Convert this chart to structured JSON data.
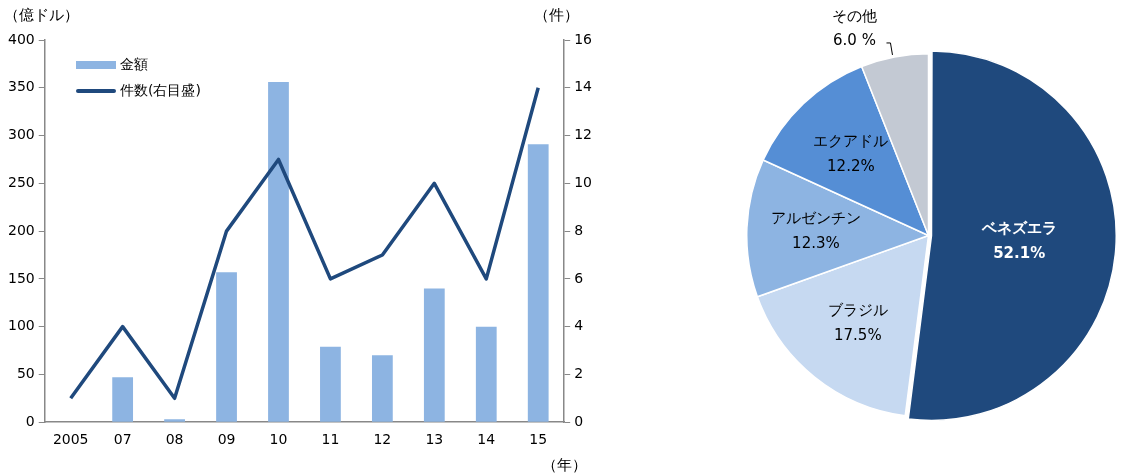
{
  "chart_data": [
    {
      "type": "bar",
      "ylabel": "（億ドル）",
      "y2label": "（件）",
      "xlabel": "（年）",
      "categories": [
        "2005",
        "07",
        "08",
        "09",
        "10",
        "11",
        "12",
        "13",
        "14",
        "15"
      ],
      "series": [
        {
          "name": "金額",
          "type": "bar",
          "color": "#8db4e2",
          "values": [
            0,
            47,
            3,
            157,
            356,
            79,
            70,
            140,
            100,
            291
          ]
        },
        {
          "name": "件数(右目盛)",
          "type": "line",
          "axis": "y2",
          "color": "#1f497d",
          "values": [
            1,
            4,
            1,
            8,
            11,
            6,
            7,
            10,
            6,
            14
          ]
        }
      ],
      "ylim": [
        0,
        400
      ],
      "yticks": [
        0,
        50,
        100,
        150,
        200,
        250,
        300,
        350,
        400
      ],
      "y2lim": [
        0,
        16
      ],
      "y2ticks": [
        0,
        2,
        4,
        6,
        8,
        10,
        12,
        14,
        16
      ],
      "legend": "top left",
      "marker": "none"
    },
    {
      "type": "pie",
      "categories": [
        "ベネズエラ",
        "ブラジル",
        "アルゼンチン",
        "エクアドル",
        "その他"
      ],
      "values": [
        52.1,
        17.5,
        12.3,
        12.2,
        6.0
      ],
      "colors": [
        "#1f497d",
        "#c6d9f1",
        "#8db4e2",
        "#558ed5",
        "#c3c9d3"
      ],
      "value_labels": [
        "52.1%",
        "17.5%",
        "12.3%",
        "12.2%",
        "6.0 %"
      ],
      "legend": false
    }
  ]
}
